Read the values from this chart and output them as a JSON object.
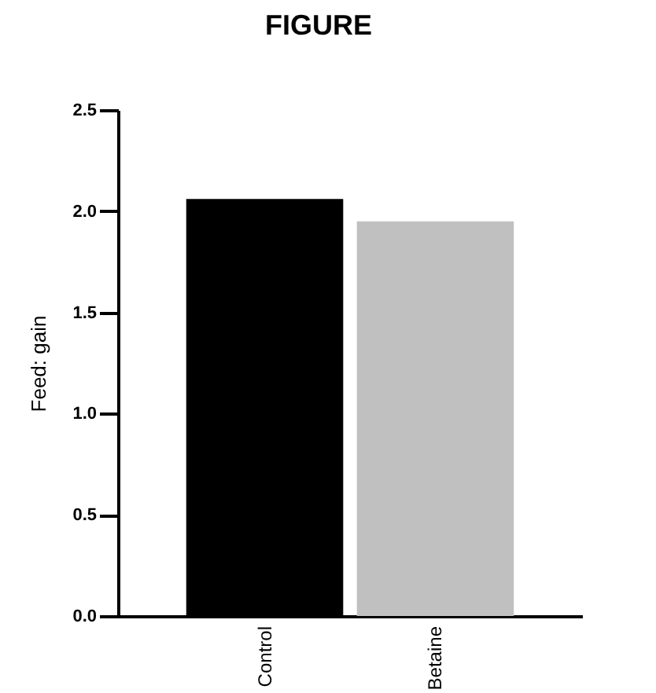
{
  "chart_data": {
    "type": "bar",
    "title": "FIGURE",
    "ylabel": "Feed: gain",
    "categories": [
      "Control",
      "Betaine"
    ],
    "values": [
      2.06,
      1.95
    ],
    "colors": [
      "#000000",
      "#c0c0c0"
    ],
    "ylim": [
      0,
      2.5
    ],
    "yticks": [
      {
        "value": 0,
        "label": "0.0"
      },
      {
        "value": 0.5,
        "label": "0.5"
      },
      {
        "value": 1,
        "label": "1.0"
      },
      {
        "value": 1.5,
        "label": "1.5"
      },
      {
        "value": 2,
        "label": "2.0"
      },
      {
        "value": 2.5,
        "label": "2.5"
      }
    ],
    "grid": false
  }
}
